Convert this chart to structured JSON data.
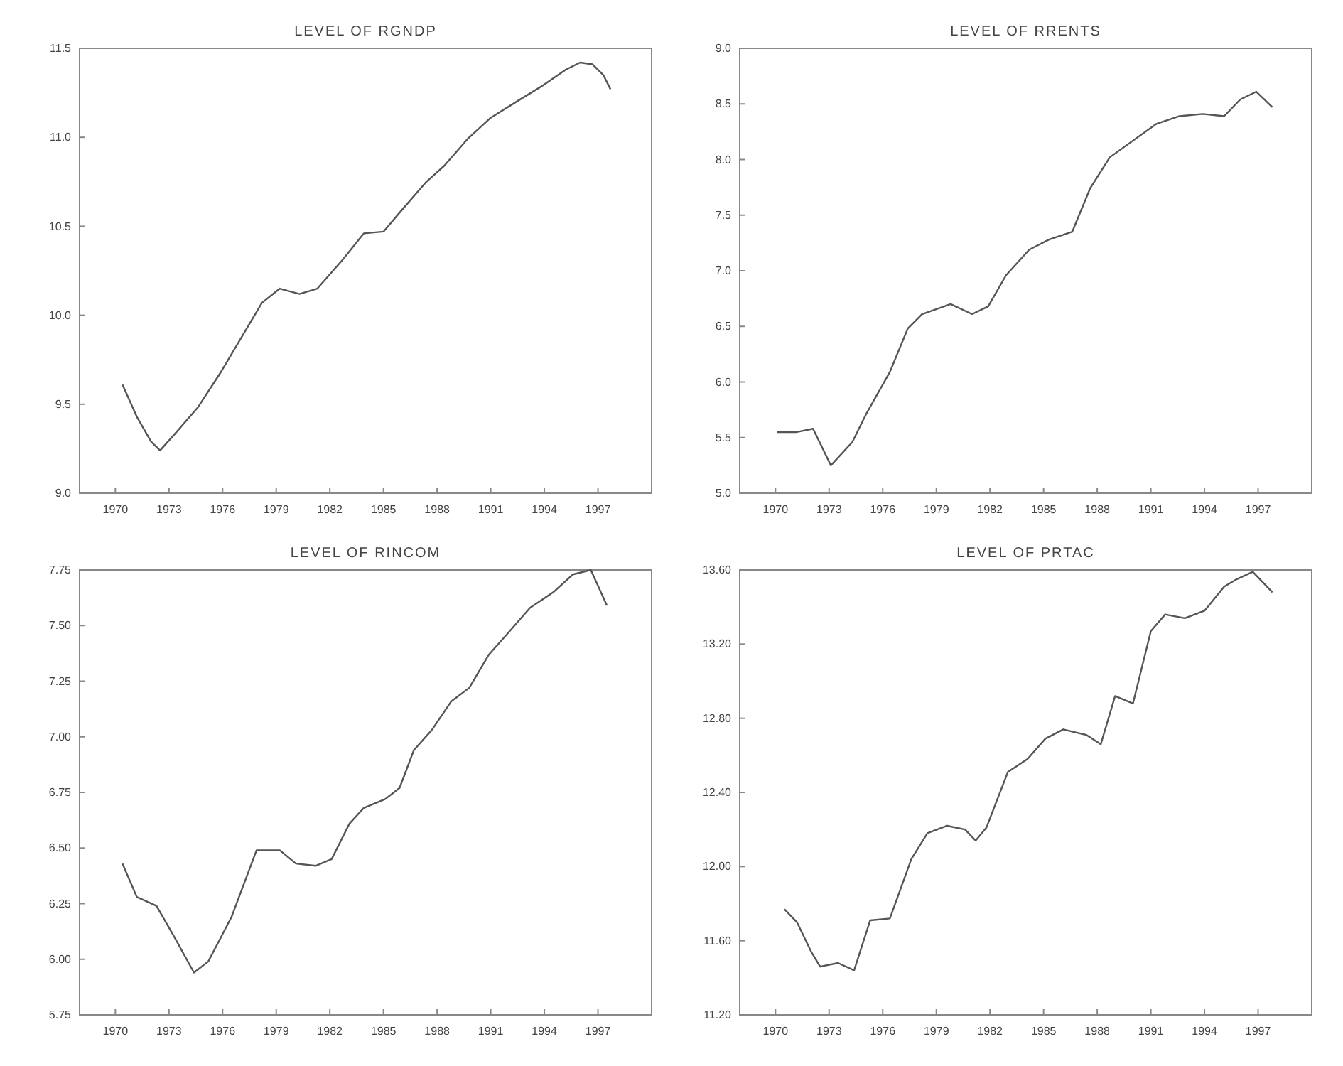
{
  "chart_data": [
    {
      "type": "line",
      "title": "LEVEL OF RGNDP",
      "x": [
        1970.4,
        1971.2,
        1972,
        1972.5,
        1973.3,
        1974.6,
        1975.9,
        1977.2,
        1978.2,
        1979.2,
        1980.3,
        1981.3,
        1982.7,
        1983.9,
        1985,
        1986.1,
        1987.4,
        1988.4,
        1989.7,
        1991,
        1992.6,
        1993.9,
        1995.2,
        1996,
        1996.7,
        1997.3,
        1997.7
      ],
      "series": [
        {
          "color": "#555555",
          "values": [
            9.61,
            9.43,
            9.29,
            9.24,
            9.33,
            9.48,
            9.68,
            9.9,
            10.07,
            10.15,
            10.12,
            10.15,
            10.31,
            10.46,
            10.47,
            10.6,
            10.75,
            10.84,
            10.99,
            11.11,
            11.21,
            11.29,
            11.38,
            11.42,
            11.41,
            11.35,
            11.27
          ]
        }
      ],
      "xlim": [
        1968,
        2000
      ],
      "xticks": [
        1970,
        1973,
        1976,
        1979,
        1982,
        1985,
        1988,
        1991,
        1994,
        1997
      ],
      "ylim": [
        9.0,
        11.5
      ],
      "yticks": [
        {
          "value": 9.0,
          "label": "9.0"
        },
        {
          "value": 9.5,
          "label": "9.5"
        },
        {
          "value": 10.0,
          "label": "10.0"
        },
        {
          "value": 10.5,
          "label": "10.5"
        },
        {
          "value": 11.0,
          "label": "11.0"
        },
        {
          "value": 11.5,
          "label": "11.5"
        }
      ]
    },
    {
      "type": "line",
      "title": "LEVEL OF RRENTS",
      "x": [
        1970.1,
        1971.2,
        1972.1,
        1973.1,
        1974.3,
        1975.1,
        1976.4,
        1977.4,
        1978.2,
        1979.8,
        1981,
        1981.9,
        1982.9,
        1984.2,
        1985.3,
        1986.6,
        1987.6,
        1988.7,
        1990,
        1991.3,
        1992.6,
        1993.9,
        1995.1,
        1996,
        1996.9,
        1997.8
      ],
      "series": [
        {
          "color": "#555555",
          "values": [
            5.55,
            5.55,
            5.58,
            5.25,
            5.46,
            5.72,
            6.09,
            6.48,
            6.61,
            6.7,
            6.61,
            6.68,
            6.96,
            7.19,
            7.28,
            7.35,
            7.74,
            8.02,
            8.17,
            8.32,
            8.39,
            8.41,
            8.39,
            8.54,
            8.61,
            8.47
          ]
        }
      ],
      "xlim": [
        1968,
        2000
      ],
      "xticks": [
        1970,
        1973,
        1976,
        1979,
        1982,
        1985,
        1988,
        1991,
        1994,
        1997
      ],
      "ylim": [
        5.0,
        9.0
      ],
      "yticks": [
        {
          "value": 5.0,
          "label": "5.0"
        },
        {
          "value": 5.5,
          "label": "5.5"
        },
        {
          "value": 6.0,
          "label": "6.0"
        },
        {
          "value": 6.5,
          "label": "6.5"
        },
        {
          "value": 7.0,
          "label": "7.0"
        },
        {
          "value": 7.5,
          "label": "7.5"
        },
        {
          "value": 8.0,
          "label": "8.0"
        },
        {
          "value": 8.5,
          "label": "8.5"
        },
        {
          "value": 9.0,
          "label": "9.0"
        }
      ]
    },
    {
      "type": "line",
      "title": "LEVEL OF RINCOM",
      "x": [
        1970.4,
        1971.2,
        1972.3,
        1973.3,
        1974.4,
        1975.2,
        1976.5,
        1977.9,
        1979.2,
        1980.1,
        1981.2,
        1982.1,
        1983.1,
        1983.9,
        1985.1,
        1985.9,
        1986.7,
        1987.7,
        1988.8,
        1989.8,
        1990.9,
        1991.9,
        1993.2,
        1994.5,
        1995.6,
        1996.6,
        1997.5
      ],
      "series": [
        {
          "color": "#555555",
          "values": [
            6.43,
            6.28,
            6.24,
            6.1,
            5.94,
            5.99,
            6.19,
            6.49,
            6.49,
            6.43,
            6.42,
            6.45,
            6.61,
            6.68,
            6.72,
            6.77,
            6.94,
            7.03,
            7.16,
            7.22,
            7.37,
            7.46,
            7.58,
            7.65,
            7.73,
            7.75,
            7.59
          ]
        }
      ],
      "xlim": [
        1968,
        2000
      ],
      "xticks": [
        1970,
        1973,
        1976,
        1979,
        1982,
        1985,
        1988,
        1991,
        1994,
        1997
      ],
      "ylim": [
        5.75,
        7.75
      ],
      "yticks": [
        {
          "value": 5.75,
          "label": "5.75"
        },
        {
          "value": 6.0,
          "label": "6.00"
        },
        {
          "value": 6.25,
          "label": "6.25"
        },
        {
          "value": 6.5,
          "label": "6.50"
        },
        {
          "value": 6.75,
          "label": "6.75"
        },
        {
          "value": 7.0,
          "label": "7.00"
        },
        {
          "value": 7.25,
          "label": "7.25"
        },
        {
          "value": 7.5,
          "label": "7.50"
        },
        {
          "value": 7.75,
          "label": "7.75"
        }
      ]
    },
    {
      "type": "line",
      "title": "LEVEL OF PRTAC",
      "x": [
        1970.5,
        1971.2,
        1972,
        1972.5,
        1973.5,
        1974.4,
        1975.3,
        1976.4,
        1977.6,
        1978.5,
        1979.6,
        1980.6,
        1981.2,
        1981.8,
        1983,
        1984.1,
        1985.1,
        1986.1,
        1987.4,
        1988.2,
        1989,
        1990,
        1991,
        1991.8,
        1992.9,
        1994,
        1995.1,
        1995.8,
        1996.7,
        1997.8
      ],
      "series": [
        {
          "color": "#555555",
          "values": [
            11.77,
            11.7,
            11.54,
            11.46,
            11.48,
            11.44,
            11.71,
            11.72,
            12.04,
            12.18,
            12.22,
            12.2,
            12.14,
            12.21,
            12.51,
            12.58,
            12.69,
            12.74,
            12.71,
            12.66,
            12.92,
            12.88,
            13.27,
            13.36,
            13.34,
            13.38,
            13.51,
            13.55,
            13.59,
            13.48
          ]
        }
      ],
      "xlim": [
        1968,
        2000
      ],
      "xticks": [
        1970,
        1973,
        1976,
        1979,
        1982,
        1985,
        1988,
        1991,
        1994,
        1997
      ],
      "ylim": [
        11.2,
        13.6
      ],
      "yticks": [
        {
          "value": 11.2,
          "label": "11.20"
        },
        {
          "value": 11.6,
          "label": "11.60"
        },
        {
          "value": 12.0,
          "label": "12.00"
        },
        {
          "value": 12.4,
          "label": "12.40"
        },
        {
          "value": 12.8,
          "label": "12.80"
        },
        {
          "value": 13.2,
          "label": "13.20"
        },
        {
          "value": 13.6,
          "label": "13.60"
        }
      ]
    }
  ]
}
